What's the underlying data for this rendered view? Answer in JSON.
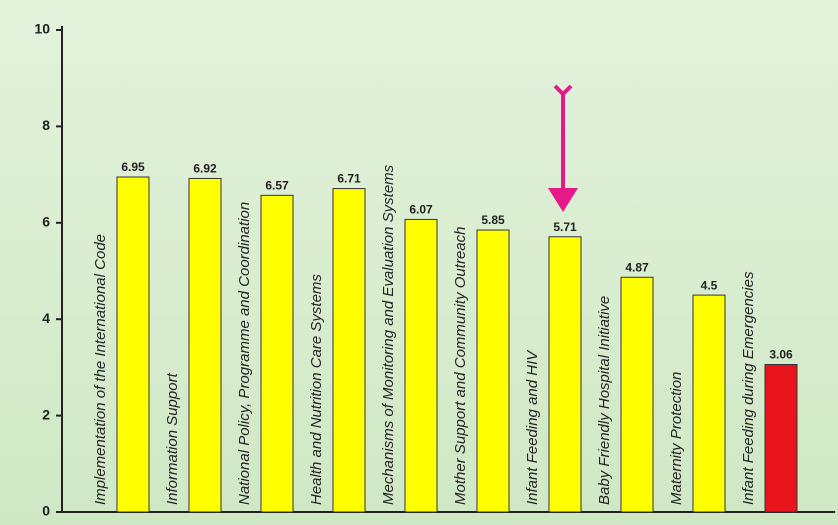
{
  "chart_data": {
    "type": "bar",
    "categories": [
      "Implementation of the International Code",
      "Information Support",
      "National Policy, Programme and Coordination",
      "Health and Nutrition Care Systems",
      "Mechanisms of Monitoring and Evaluation Systems",
      "Mother Support and Community Outreach",
      "Infant Feeding and HIV",
      "Baby Friendly Hospital Initiative",
      "Maternity Protection",
      "Infant Feeding during Emergencies"
    ],
    "values": [
      6.95,
      6.92,
      6.57,
      6.71,
      6.07,
      5.85,
      5.71,
      4.87,
      4.5,
      3.06
    ],
    "colors": [
      "#ffff00",
      "#ffff00",
      "#ffff00",
      "#ffff00",
      "#ffff00",
      "#ffff00",
      "#ffff00",
      "#ffff00",
      "#ffff00",
      "#e8141c"
    ],
    "ylim": [
      0,
      10
    ],
    "yticks": [
      0,
      2,
      4,
      6,
      8,
      10
    ],
    "grid": false
  }
}
